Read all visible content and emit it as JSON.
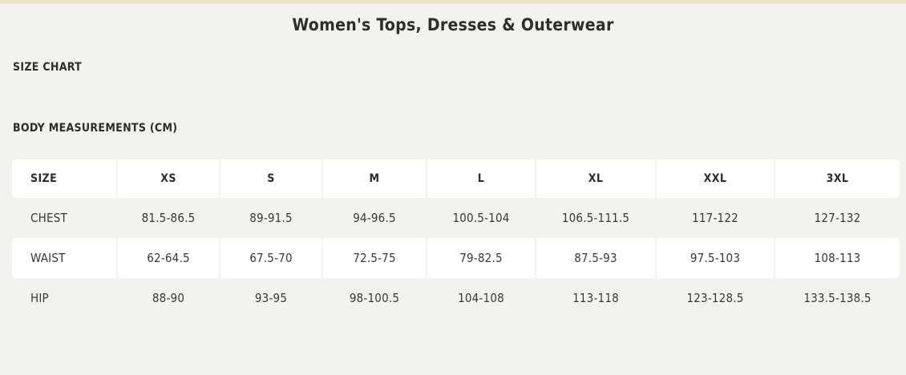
{
  "page": {
    "title": "Women's Tops, Dresses & Outerwear",
    "section_label": "SIZE CHART",
    "table_title": "BODY MEASUREMENTS (CM)"
  },
  "colors": {
    "top_strip": "#ece3c9",
    "page_background": "#f2f2f0",
    "row_white": "#ffffff",
    "text_dark": "#2d2d2d",
    "text_body": "#383838"
  },
  "size_table": {
    "columns": [
      "SIZE",
      "XS",
      "S",
      "M",
      "L",
      "XL",
      "XXL",
      "3XL"
    ],
    "rows": [
      {
        "label": "CHEST",
        "values": [
          "81.5-86.5",
          "89-91.5",
          "94-96.5",
          "100.5-104",
          "106.5-111.5",
          "117-122",
          "127-132"
        ]
      },
      {
        "label": "WAIST",
        "values": [
          "62-64.5",
          "67.5-70",
          "72.5-75",
          "79-82.5",
          "87.5-93",
          "97.5-103",
          "108-113"
        ]
      },
      {
        "label": "HIP",
        "values": [
          "88-90",
          "93-95",
          "98-100.5",
          "104-108",
          "113-118",
          "123-128.5",
          "133.5-138.5"
        ]
      }
    ]
  }
}
